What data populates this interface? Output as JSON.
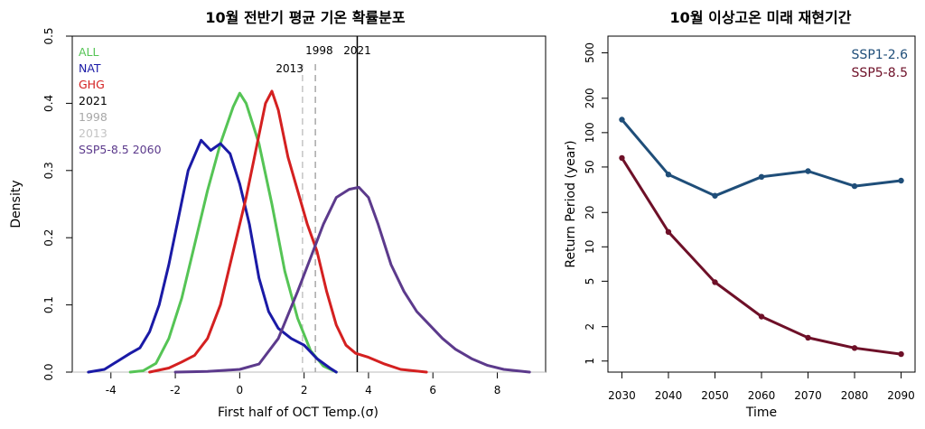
{
  "chart_data": [
    {
      "type": "line",
      "title": "10월 전반기 평균 기온 확률분포",
      "xlabel": "First half of OCT Temp.(σ)",
      "ylabel": "Density",
      "xlim": [
        -5.2,
        9.5
      ],
      "ylim": [
        0,
        0.5
      ],
      "xticks": [
        -4,
        -2,
        0,
        2,
        4,
        6,
        8
      ],
      "yticks": [
        0.0,
        0.1,
        0.2,
        0.3,
        0.4,
        0.5
      ],
      "legend_position": "top-left",
      "series": [
        {
          "name": "ALL",
          "color": "#55c455",
          "x": [
            -3.4,
            -3.0,
            -2.6,
            -2.2,
            -1.8,
            -1.4,
            -1.0,
            -0.6,
            -0.2,
            0.0,
            0.2,
            0.6,
            1.0,
            1.4,
            1.8,
            2.2,
            2.6,
            3.0
          ],
          "y": [
            0.0,
            0.002,
            0.013,
            0.05,
            0.11,
            0.19,
            0.27,
            0.34,
            0.395,
            0.415,
            0.4,
            0.34,
            0.25,
            0.15,
            0.08,
            0.032,
            0.009,
            0.0
          ]
        },
        {
          "name": "NAT",
          "color": "#1a1aa6",
          "x": [
            -4.7,
            -4.2,
            -3.8,
            -3.4,
            -3.1,
            -2.8,
            -2.5,
            -2.2,
            -1.9,
            -1.6,
            -1.2,
            -0.9,
            -0.6,
            -0.3,
            0.0,
            0.3,
            0.6,
            0.9,
            1.2,
            1.6,
            2.0,
            2.4,
            2.8,
            3.0
          ],
          "y": [
            0.0,
            0.004,
            0.016,
            0.028,
            0.036,
            0.06,
            0.1,
            0.16,
            0.23,
            0.3,
            0.345,
            0.33,
            0.34,
            0.325,
            0.28,
            0.22,
            0.14,
            0.09,
            0.065,
            0.05,
            0.04,
            0.02,
            0.006,
            0.0
          ]
        },
        {
          "name": "GHG",
          "color": "#d42020",
          "x": [
            -2.8,
            -2.2,
            -1.8,
            -1.4,
            -1.0,
            -0.6,
            -0.2,
            0.2,
            0.5,
            0.8,
            1.0,
            1.2,
            1.5,
            1.8,
            2.1,
            2.4,
            2.7,
            3.0,
            3.3,
            3.6,
            4.0,
            4.5,
            5.0,
            5.8
          ],
          "y": [
            0.0,
            0.006,
            0.015,
            0.025,
            0.05,
            0.1,
            0.18,
            0.26,
            0.33,
            0.4,
            0.418,
            0.39,
            0.32,
            0.27,
            0.22,
            0.18,
            0.12,
            0.07,
            0.04,
            0.028,
            0.022,
            0.012,
            0.004,
            0.0
          ]
        },
        {
          "name": "2021",
          "color": "#000000"
        },
        {
          "name": "1998",
          "color": "#a8a8a8"
        },
        {
          "name": "2013",
          "color": "#c4c4c4"
        },
        {
          "name": "SSP5-8.5 2060",
          "color": "#5c3a8c",
          "x": [
            -2.0,
            -1.0,
            0.0,
            0.6,
            1.2,
            1.8,
            2.2,
            2.6,
            3.0,
            3.4,
            3.7,
            4.0,
            4.3,
            4.7,
            5.1,
            5.5,
            5.9,
            6.3,
            6.7,
            7.2,
            7.7,
            8.2,
            9.0
          ],
          "y": [
            0.0,
            0.001,
            0.004,
            0.012,
            0.05,
            0.12,
            0.17,
            0.22,
            0.26,
            0.272,
            0.275,
            0.26,
            0.22,
            0.16,
            0.12,
            0.09,
            0.07,
            0.05,
            0.034,
            0.02,
            0.01,
            0.004,
            0.0
          ]
        }
      ],
      "vlines": [
        {
          "label": "2013",
          "x": 1.95,
          "style": "dashed",
          "color": "#c4c4c4"
        },
        {
          "label": "1998",
          "x": 2.35,
          "style": "dashed",
          "color": "#a8a8a8"
        },
        {
          "label": "2021",
          "x": 3.65,
          "style": "solid",
          "color": "#000000"
        }
      ]
    },
    {
      "type": "line",
      "title": "10월 이상고온 미래 재현기간",
      "xlabel": "Time",
      "ylabel": "Return Period (year)",
      "yscale": "log",
      "xlim": [
        2027,
        2093
      ],
      "ylim": [
        0.8,
        700
      ],
      "xticks": [
        2030,
        2040,
        2050,
        2060,
        2070,
        2080,
        2090
      ],
      "yticks": [
        1,
        2,
        5,
        10,
        20,
        50,
        100,
        200,
        500
      ],
      "legend_position": "top-right",
      "series": [
        {
          "name": "SSP1-2.6",
          "color": "#1f4e79",
          "x": [
            2030,
            2040,
            2050,
            2060,
            2070,
            2080,
            2090
          ],
          "y": [
            130,
            43,
            28,
            41,
            46,
            34,
            38
          ]
        },
        {
          "name": "SSP5-8.5",
          "color": "#6e1028",
          "x": [
            2030,
            2040,
            2050,
            2060,
            2070,
            2080,
            2090
          ],
          "y": [
            60,
            13.5,
            4.9,
            2.45,
            1.6,
            1.3,
            1.15
          ]
        }
      ]
    }
  ]
}
